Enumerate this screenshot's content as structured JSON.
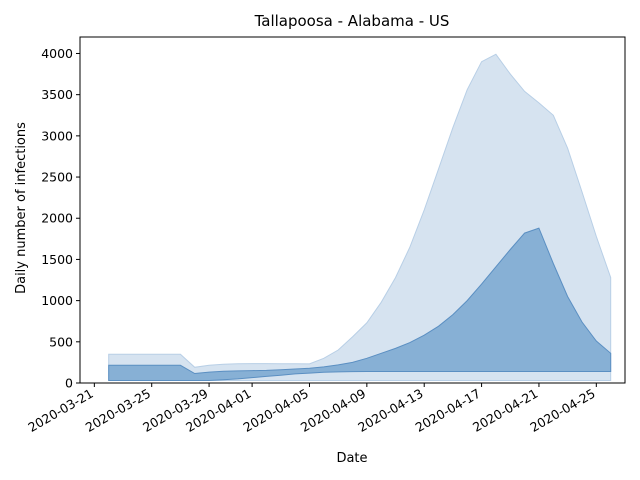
{
  "chart_data": {
    "type": "area",
    "title": "Tallapoosa - Alabama - US",
    "xlabel": "Date",
    "ylabel": "Daily number of infections",
    "x_start": "2020-03-22",
    "x_end": "2020-04-26",
    "xlim": [
      "2020-03-20",
      "2020-04-27"
    ],
    "ylim": [
      0,
      4200
    ],
    "grid": false,
    "x_ticks": [
      "2020-03-21",
      "2020-03-25",
      "2020-03-29",
      "2020-04-01",
      "2020-04-05",
      "2020-04-09",
      "2020-04-13",
      "2020-04-17",
      "2020-04-21",
      "2020-04-25"
    ],
    "y_ticks": [
      0,
      500,
      1000,
      1500,
      2000,
      2500,
      3000,
      3500,
      4000
    ],
    "colors": {
      "outer_band": "#d6e3f0",
      "outer_band_edge": "#b8cfe6",
      "inner_band": "#87b0d5",
      "inner_band_edge": "#5b8fc2"
    },
    "series": [
      {
        "role": "outer_upper",
        "values": [
          350,
          350,
          350,
          350,
          350,
          350,
          190,
          215,
          228,
          233,
          235,
          235,
          234,
          234,
          232,
          300,
          400,
          560,
          730,
          980,
          1280,
          1650,
          2100,
          2600,
          3100,
          3560,
          3900,
          3990,
          3750,
          3540,
          3400,
          3250,
          2850,
          2320,
          1780,
          1280
        ]
      },
      {
        "role": "outer_lower",
        "values": [
          30,
          30,
          30,
          30,
          30,
          30,
          30,
          30,
          30,
          30,
          30,
          30,
          30,
          30,
          30,
          30,
          30,
          30,
          30,
          30,
          30,
          30,
          30,
          30,
          30,
          30,
          30,
          30,
          30,
          30,
          30,
          30,
          30,
          30,
          30,
          30
        ]
      },
      {
        "role": "inner_upper",
        "values": [
          215,
          215,
          215,
          215,
          215,
          215,
          115,
          132,
          142,
          147,
          150,
          153,
          160,
          170,
          178,
          195,
          220,
          250,
          300,
          360,
          420,
          490,
          580,
          690,
          830,
          1000,
          1200,
          1410,
          1620,
          1820,
          1880,
          1450,
          1050,
          740,
          510,
          360
        ]
      },
      {
        "role": "inner_lower",
        "values": [
          30,
          30,
          30,
          30,
          30,
          30,
          30,
          30,
          40,
          50,
          65,
          80,
          95,
          110,
          120,
          130,
          135,
          138,
          140,
          140,
          140,
          140,
          140,
          140,
          140,
          140,
          140,
          140,
          140,
          140,
          140,
          140,
          140,
          140,
          140,
          140
        ]
      }
    ]
  }
}
